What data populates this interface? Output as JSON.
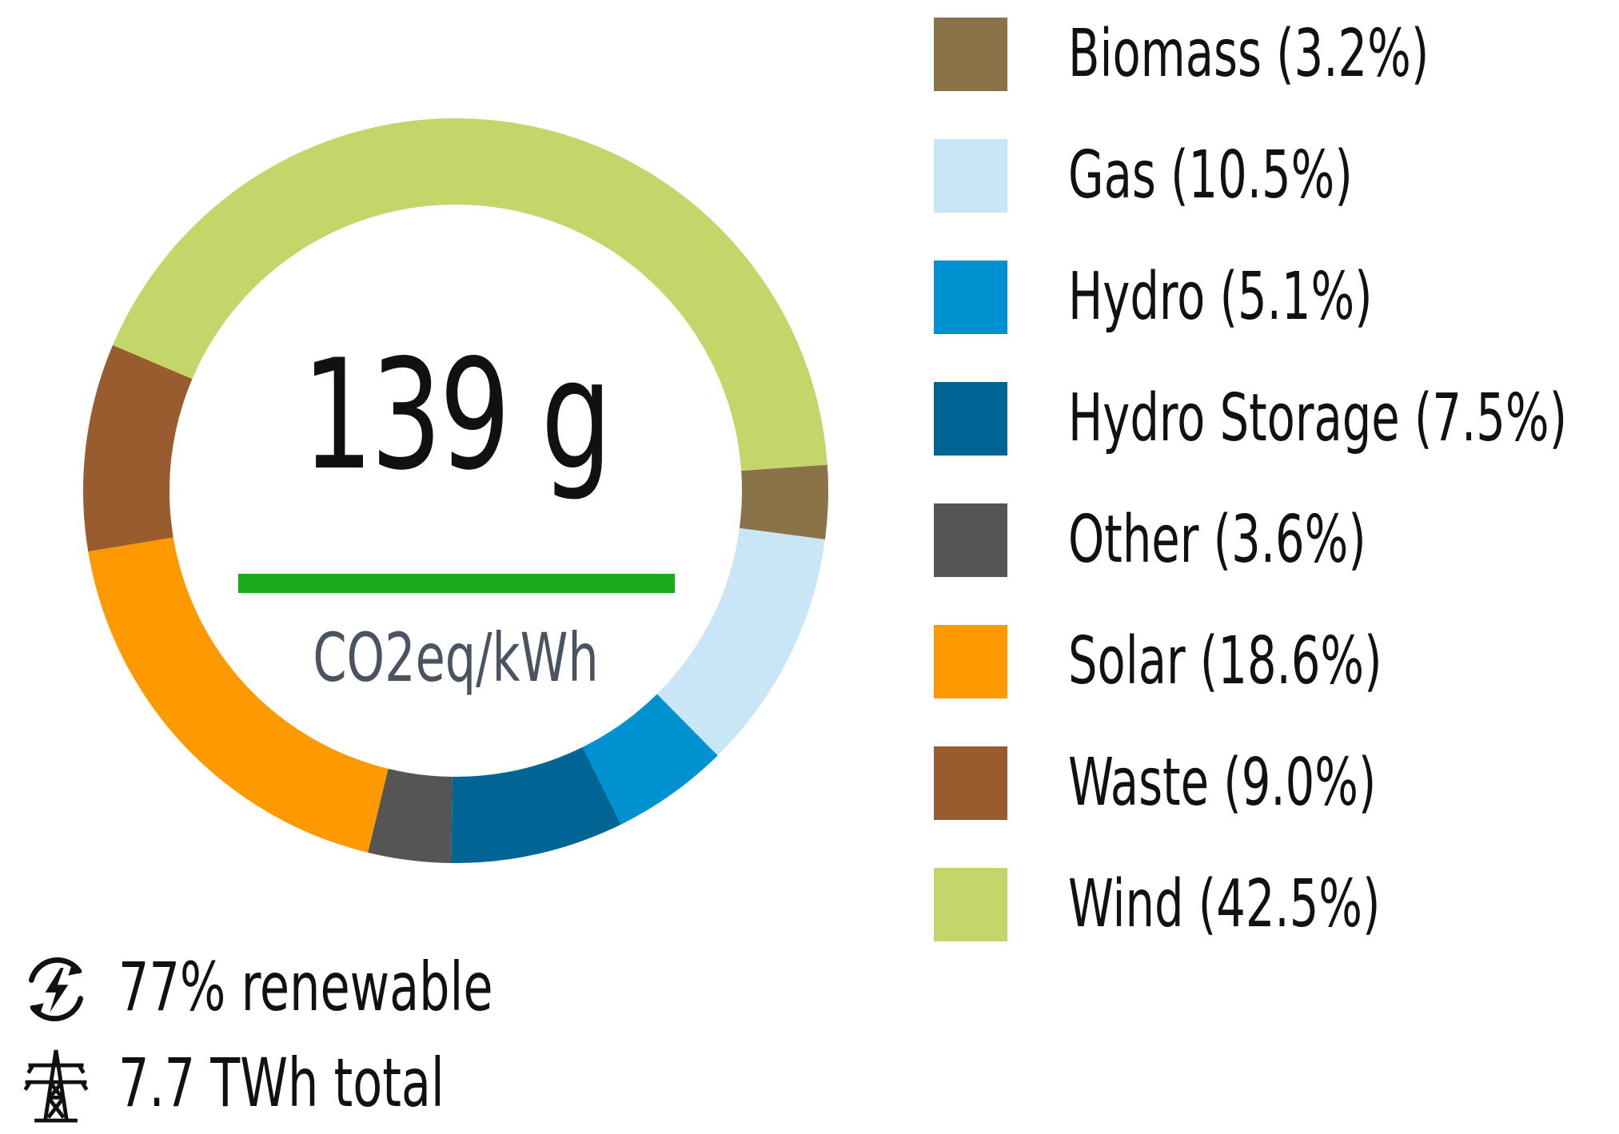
{
  "chart_data": {
    "type": "pie",
    "categories": [
      "Biomass",
      "Gas",
      "Hydro",
      "Hydro Storage",
      "Other",
      "Solar",
      "Waste",
      "Wind"
    ],
    "values": [
      3.2,
      10.5,
      5.1,
      7.5,
      3.6,
      18.6,
      9.0,
      42.5
    ],
    "labels": [
      "Biomass (3.2%)",
      "Gas (10.5%)",
      "Hydro (5.1%)",
      "Hydro Storage (7.5%)",
      "Other (3.6%)",
      "Solar (18.6%)",
      "Waste (9.0%)",
      "Wind (42.5%)"
    ],
    "colors": [
      "#8b7349",
      "#c8e6f5",
      "#0091d0",
      "#006594",
      "#555555",
      "#ff9900",
      "#995c2e",
      "#c4d66a"
    ],
    "donut": true,
    "start": "3 o'clock, clockwise",
    "legend_position": "right"
  },
  "center": {
    "value": "139 g",
    "unit": "CO2eq/kWh",
    "bar_color": "#1aab1a"
  },
  "stats": {
    "renewable": "77% renewable",
    "renewable_icon": "renewable-energy-icon",
    "total": "7.7 TWh total",
    "total_icon": "power-tower-icon"
  }
}
